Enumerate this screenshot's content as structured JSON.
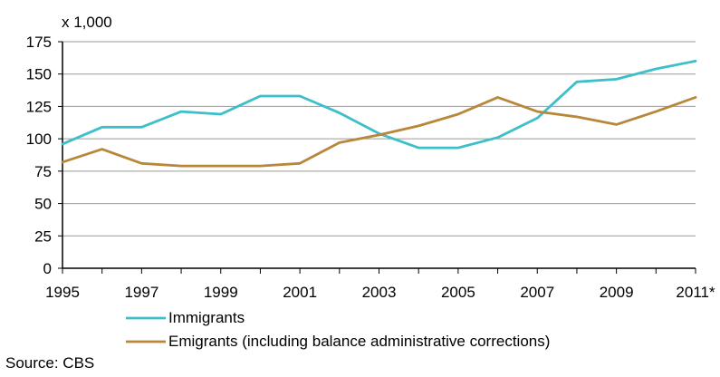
{
  "chart_data": {
    "type": "line",
    "unit_label": "x 1,000",
    "x": [
      1995,
      1996,
      1997,
      1998,
      1999,
      2000,
      2001,
      2002,
      2003,
      2004,
      2005,
      2006,
      2007,
      2008,
      2009,
      2010,
      2011
    ],
    "x_tick_labels": [
      "1995",
      "1997",
      "1999",
      "2001",
      "2003",
      "2005",
      "2007",
      "2009",
      "2011*"
    ],
    "y_ticks": [
      0,
      25,
      50,
      75,
      100,
      125,
      150,
      175
    ],
    "ylim": [
      0,
      175
    ],
    "grid": "horizontal",
    "legend_position": "bottom",
    "series": [
      {
        "name": "Immigrants",
        "color": "#3cbfc8",
        "values": [
          96,
          109,
          109,
          121,
          119,
          133,
          133,
          120,
          104,
          93,
          93,
          101,
          116,
          144,
          146,
          154,
          160
        ]
      },
      {
        "name": "Emigrants (including balance administrative corrections)",
        "color": "#b8873a",
        "values": [
          82,
          92,
          81,
          79,
          79,
          79,
          81,
          97,
          103,
          110,
          119,
          132,
          121,
          117,
          111,
          121,
          132
        ]
      }
    ]
  },
  "source": "Source: CBS"
}
